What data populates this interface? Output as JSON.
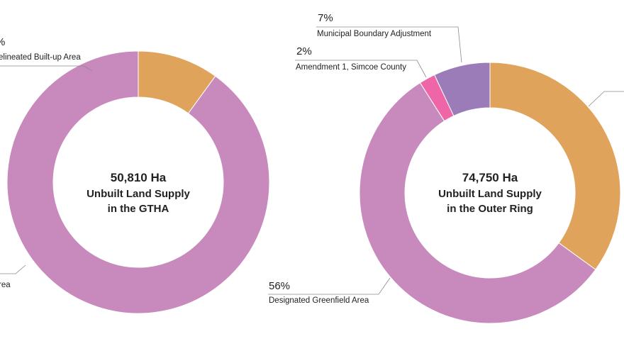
{
  "chart_data": [
    {
      "type": "pie",
      "variant": "donut",
      "center_text": {
        "total": "50,810 Ha",
        "line1": "Unbuilt Land Supply",
        "line2": "in the GTHA"
      },
      "slices": [
        {
          "key": "builtup",
          "pct_text": "%",
          "label": "elineated Built-up Area",
          "value": 10,
          "color": "#e0a35c"
        },
        {
          "key": "greenfield",
          "pct_text": "",
          "label": "rea",
          "value": 90,
          "color": "#c889bd"
        }
      ]
    },
    {
      "type": "pie",
      "variant": "donut",
      "center_text": {
        "total": "74,750 Ha",
        "line1": "Unbuilt Land Supply",
        "line2": "in the Outer Ring"
      },
      "slices": [
        {
          "key": "other",
          "pct_text": "",
          "label": "",
          "value": 35,
          "color": "#e0a35c"
        },
        {
          "key": "greenfield",
          "pct_text": "56%",
          "label": "Designated Greenfield Area",
          "value": 56,
          "color": "#c889bd"
        },
        {
          "key": "simcoe",
          "pct_text": "2%",
          "label": "Amendment 1, Simcoe County",
          "value": 2,
          "color": "#ee66a8"
        },
        {
          "key": "boundary",
          "pct_text": "7%",
          "label": "Municipal Boundary Adjustment",
          "value": 7,
          "color": "#9b7bb8"
        }
      ]
    }
  ]
}
